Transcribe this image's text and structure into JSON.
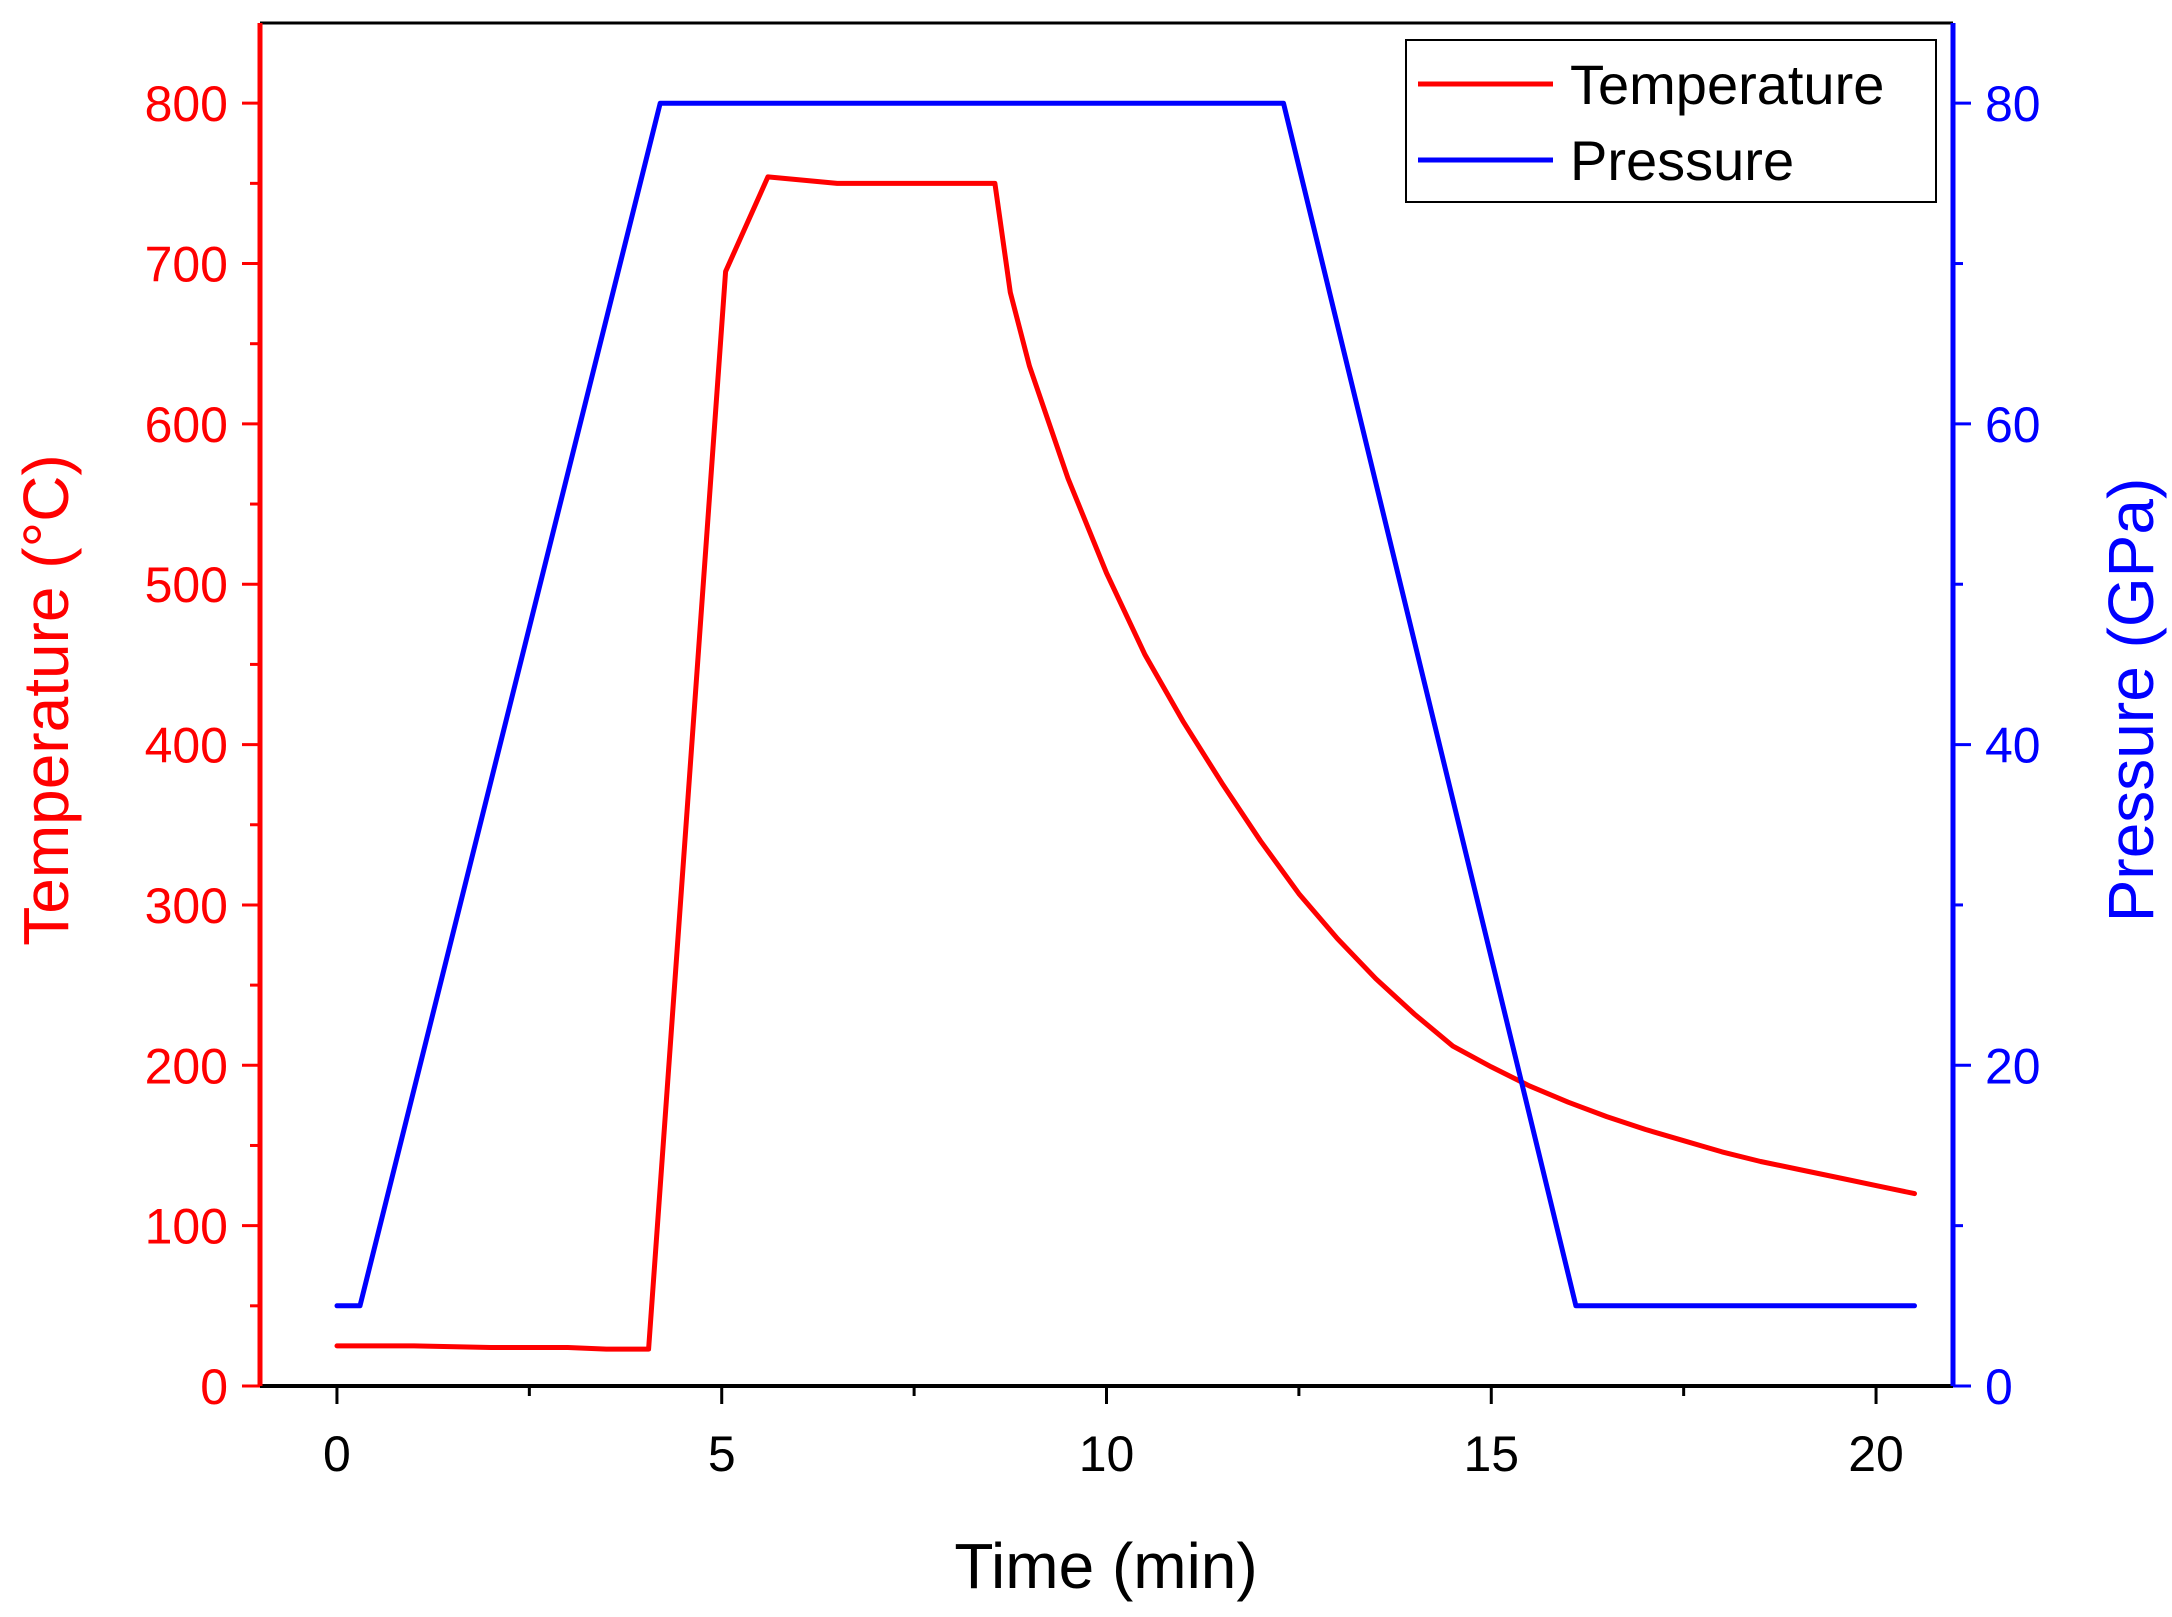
{
  "chart_data": {
    "type": "line",
    "title": "",
    "xlabel": "Time (min)",
    "ylabel_left": "Temperature (°C)",
    "ylabel_right": "Pressure (GPa)",
    "xlim": [
      -1,
      21
    ],
    "ylim_left": [
      0,
      850
    ],
    "ylim_right": [
      0,
      85
    ],
    "x_ticks": [
      0,
      5,
      10,
      15,
      20
    ],
    "x_tick_labels": [
      "0",
      "5",
      "10",
      "15",
      "20"
    ],
    "y_left_ticks": [
      0,
      100,
      200,
      300,
      400,
      500,
      600,
      700,
      800
    ],
    "y_left_tick_labels": [
      "0",
      "100",
      "200",
      "300",
      "400",
      "500",
      "600",
      "700",
      "800"
    ],
    "y_right_ticks": [
      0,
      20,
      40,
      60,
      80
    ],
    "y_right_tick_labels": [
      "0",
      "20",
      "40",
      "60",
      "80"
    ],
    "legend_position": "top-right",
    "grid": false,
    "series": [
      {
        "name": "Temperature",
        "axis": "left",
        "color": "#ff0000",
        "x": [
          0,
          1,
          2,
          3,
          3.5,
          4.05,
          5.05,
          5.6,
          6.5,
          7.5,
          8.55,
          8.75,
          9,
          9.5,
          10,
          10.5,
          11,
          11.5,
          12,
          12.5,
          13,
          13.5,
          14,
          14.5,
          15,
          15.5,
          16,
          16.5,
          17,
          17.5,
          18,
          18.5,
          19,
          19.5,
          20,
          20.5
        ],
        "values": [
          25,
          25,
          24,
          24,
          23,
          23,
          695,
          754,
          750,
          750,
          750,
          682,
          636,
          566,
          507,
          456,
          414,
          376,
          340,
          307,
          279,
          254,
          232,
          212,
          199,
          187,
          177,
          168,
          160,
          153,
          146,
          140,
          135,
          130,
          125,
          120
        ]
      },
      {
        "name": "Pressure",
        "axis": "right",
        "color": "#0000ff",
        "x": [
          0,
          0.3,
          4.2,
          8.3,
          12.3,
          16.1,
          20.5
        ],
        "values": [
          5,
          5,
          80,
          80,
          80,
          5,
          5
        ]
      }
    ]
  }
}
